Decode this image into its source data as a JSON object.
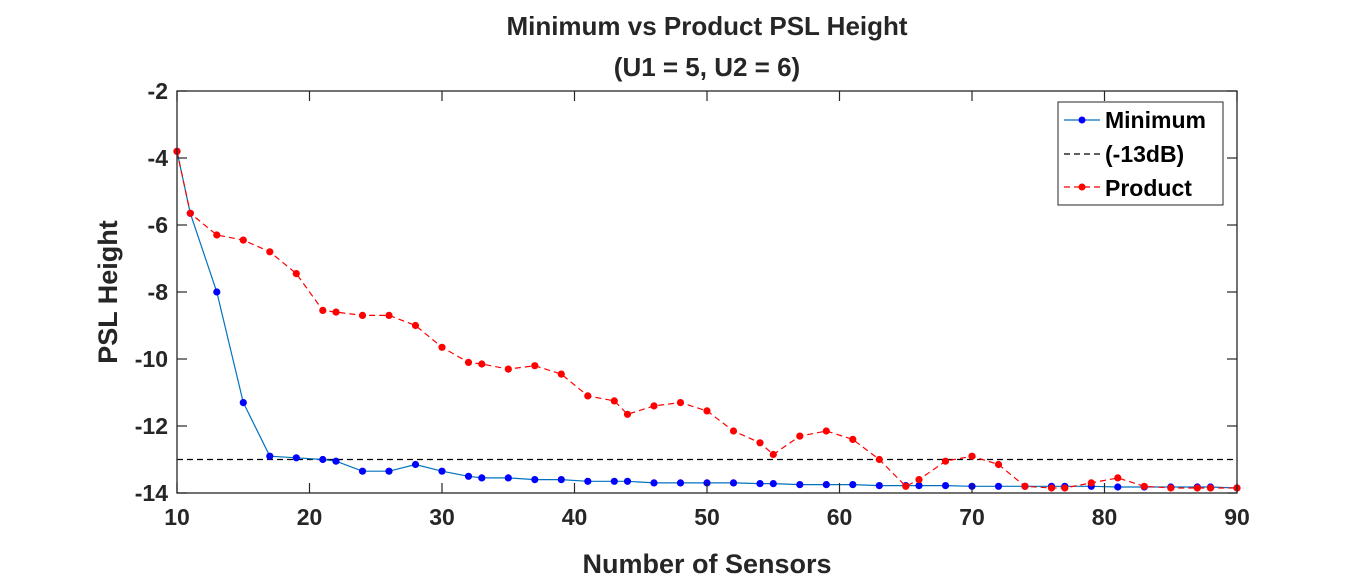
{
  "chart_data": {
    "type": "line",
    "title": "Minimum vs Product PSL Height",
    "subtitle": "(U1 = 5, U2 = 6)",
    "xlabel": "Number of Sensors",
    "ylabel": "PSL Height",
    "xlim": [
      10,
      90
    ],
    "ylim": [
      -14,
      -2
    ],
    "xticks": [
      10,
      20,
      30,
      40,
      50,
      60,
      70,
      80,
      90
    ],
    "yticks": [
      -14,
      -12,
      -10,
      -8,
      -6,
      -4,
      -2
    ],
    "grid": false,
    "legend_position": "top-right",
    "series": [
      {
        "name": "Minimum",
        "color": "#0072BD",
        "marker_color": "#0000FF",
        "line_style": "solid",
        "marker": "dot",
        "x": [
          10,
          11,
          13,
          15,
          17,
          19,
          21,
          22,
          24,
          26,
          28,
          30,
          32,
          33,
          35,
          37,
          39,
          41,
          43,
          44,
          46,
          48,
          50,
          52,
          54,
          55,
          57,
          59,
          61,
          63,
          65,
          66,
          68,
          70,
          72,
          74,
          76,
          77,
          79,
          81,
          83,
          85,
          87,
          88,
          90
        ],
        "y": [
          -3.8,
          -5.65,
          -8.0,
          -11.3,
          -12.9,
          -12.95,
          -13.0,
          -13.05,
          -13.35,
          -13.35,
          -13.15,
          -13.35,
          -13.5,
          -13.55,
          -13.55,
          -13.6,
          -13.6,
          -13.65,
          -13.65,
          -13.65,
          -13.7,
          -13.7,
          -13.7,
          -13.7,
          -13.72,
          -13.72,
          -13.75,
          -13.75,
          -13.75,
          -13.78,
          -13.78,
          -13.78,
          -13.78,
          -13.8,
          -13.8,
          -13.8,
          -13.8,
          -13.8,
          -13.8,
          -13.82,
          -13.82,
          -13.82,
          -13.82,
          -13.82,
          -13.85
        ]
      },
      {
        "name": "(-13dB)",
        "color": "#000000",
        "line_style": "dashed",
        "marker": "none",
        "x": [
          10,
          90
        ],
        "y": [
          -13,
          -13
        ]
      },
      {
        "name": "Product",
        "color": "#FF0000",
        "marker_color": "#FF0000",
        "line_style": "dashed",
        "marker": "dot",
        "x": [
          10,
          11,
          13,
          15,
          17,
          19,
          21,
          22,
          24,
          26,
          28,
          30,
          32,
          33,
          35,
          37,
          39,
          41,
          43,
          44,
          46,
          48,
          50,
          52,
          54,
          55,
          57,
          59,
          61,
          63,
          65,
          66,
          68,
          70,
          72,
          74,
          76,
          77,
          79,
          81,
          83,
          85,
          87,
          88,
          90
        ],
        "y": [
          -3.8,
          -5.65,
          -6.3,
          -6.45,
          -6.8,
          -7.45,
          -8.55,
          -8.6,
          -8.7,
          -8.7,
          -9.0,
          -9.65,
          -10.1,
          -10.15,
          -10.3,
          -10.2,
          -10.45,
          -11.1,
          -11.25,
          -11.65,
          -11.4,
          -11.3,
          -11.55,
          -12.15,
          -12.5,
          -12.85,
          -12.3,
          -12.15,
          -12.4,
          -13.0,
          -13.8,
          -13.6,
          -13.05,
          -12.9,
          -13.15,
          -13.8,
          -13.85,
          -13.85,
          -13.7,
          -13.55,
          -13.8,
          -13.85,
          -13.85,
          -13.85,
          -13.85
        ]
      }
    ]
  }
}
